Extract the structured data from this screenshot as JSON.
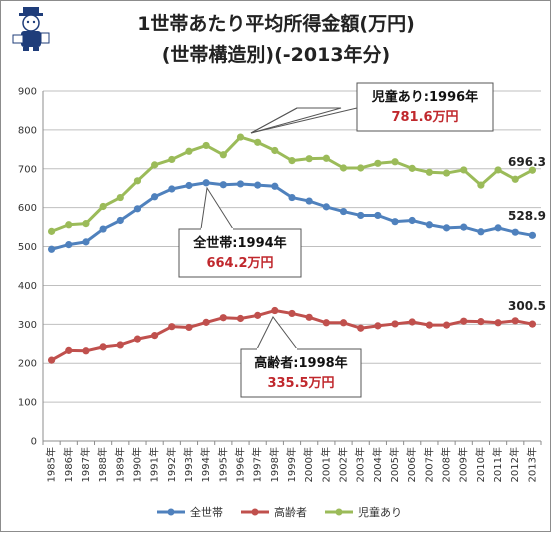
{
  "chart_data": {
    "type": "line",
    "title": [
      "1世帯あたり平均所得金額(万円)",
      "(世帯構造別)(-2013年分)"
    ],
    "xlabel": "",
    "ylabel": "",
    "ylim": [
      0,
      900
    ],
    "yticks": [
      0,
      100,
      200,
      300,
      400,
      500,
      600,
      700,
      800,
      900
    ],
    "grid": true,
    "legend_position": "bottom",
    "categories": [
      "1985年",
      "1986年",
      "1987年",
      "1988年",
      "1989年",
      "1990年",
      "1991年",
      "1992年",
      "1993年",
      "1994年",
      "1995年",
      "1996年",
      "1997年",
      "1998年",
      "1999年",
      "2000年",
      "2001年",
      "2002年",
      "2003年",
      "2004年",
      "2005年",
      "2006年",
      "2007年",
      "2008年",
      "2009年",
      "2010年",
      "2011年",
      "2012年",
      "2013年"
    ],
    "series": [
      {
        "name": "全世帯",
        "color": "#4f81bd",
        "values": [
          493,
          505,
          512,
          545,
          567,
          597,
          628,
          648,
          657,
          664,
          659,
          661,
          658,
          655,
          626,
          617,
          602,
          590,
          580,
          580,
          564,
          567,
          556,
          548,
          550,
          538,
          548,
          537,
          528.9
        ]
      },
      {
        "name": "高齢者",
        "color": "#c0504d",
        "values": [
          208,
          233,
          232,
          242,
          247,
          262,
          271,
          294,
          292,
          305,
          317,
          315,
          323,
          335.5,
          328,
          318,
          304,
          304,
          290,
          296,
          301,
          306,
          298,
          298,
          308,
          307,
          304,
          309,
          300.5
        ]
      },
      {
        "name": "児童あり",
        "color": "#9bbb59",
        "values": [
          539,
          556,
          559,
          603,
          626,
          669,
          710,
          724,
          745,
          760,
          736,
          781.6,
          768,
          747,
          721,
          726,
          727,
          702,
          702,
          714,
          718,
          701,
          691,
          689,
          697,
          658,
          697,
          673,
          696.3
        ]
      }
    ],
    "end_labels": [
      "696.3",
      "528.9",
      "300.5"
    ],
    "callouts": [
      {
        "label": "児童あり:1996年",
        "value": "781.6万円"
      },
      {
        "label": "全世帯:1994年",
        "value": "664.2万円"
      },
      {
        "label": "高齢者:1998年",
        "value": "335.5万円"
      }
    ]
  }
}
